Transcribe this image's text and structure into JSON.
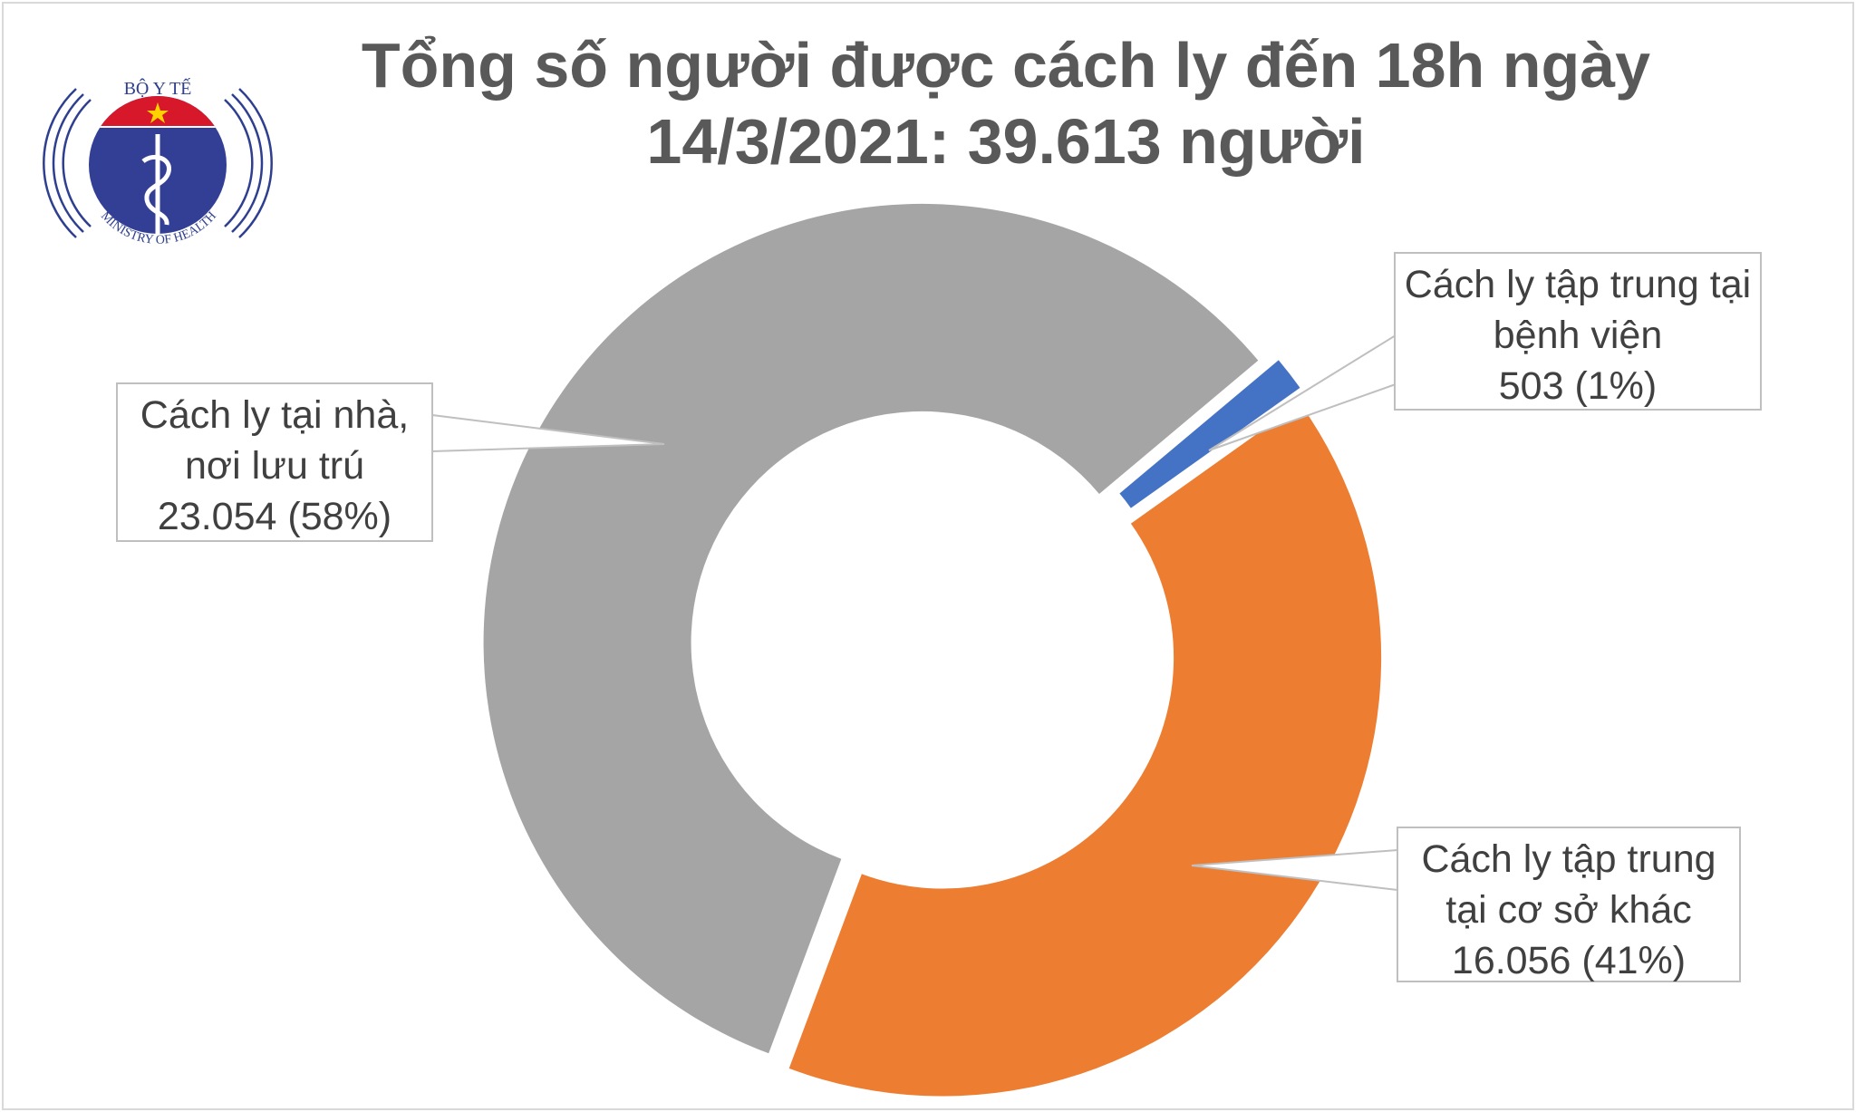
{
  "logo": {
    "top_text": "BỘ Y TẾ",
    "bottom_text": "MINISTRY OF HEALTH"
  },
  "chart_data": {
    "type": "pie",
    "subtype": "donut",
    "title_lines": [
      "Tổng số người được cách ly đến 18h ngày",
      "14/3/2021: 39.613 người"
    ],
    "total": 39613,
    "slices": [
      {
        "name_lines": [
          "Cách ly tập trung tại",
          "bệnh viện"
        ],
        "value": 503,
        "percent": 1,
        "value_label": "503 (1%)",
        "color": "#4472c4"
      },
      {
        "name_lines": [
          "Cách ly tập trung",
          "tại cơ sở khác"
        ],
        "value": 16056,
        "percent": 41,
        "value_label": "16.056 (41%)",
        "color": "#ed7d31"
      },
      {
        "name_lines": [
          "Cách ly tại nhà,",
          "nơi lưu trú"
        ],
        "value": 23054,
        "percent": 58,
        "value_label": "23.054 (58%)",
        "color": "#a5a5a5"
      }
    ],
    "legend": "none"
  }
}
